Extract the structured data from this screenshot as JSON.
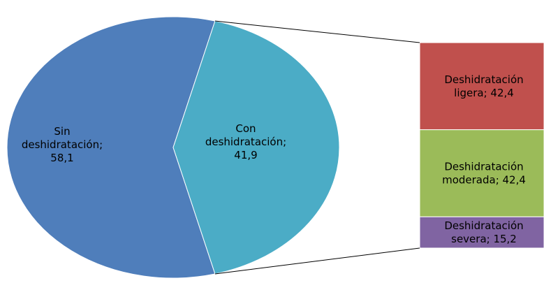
{
  "chart_data": {
    "type": "bar-of-pie",
    "pie": {
      "slices": [
        {
          "label_lines": [
            "Sin",
            "deshidratación;",
            "58,1"
          ],
          "value": 58.1,
          "color": "#4f7ebb"
        },
        {
          "label_lines": [
            "Con",
            "deshidratación;",
            "41,9"
          ],
          "value": 41.9,
          "color": "#4bacc6"
        }
      ]
    },
    "bar": {
      "segments": [
        {
          "label_lines": [
            "Deshidratación",
            "ligera; 42,4"
          ],
          "value": 42.4,
          "color": "#c0504d"
        },
        {
          "label_lines": [
            "Deshidratación",
            "moderada; 42,4"
          ],
          "value": 42.4,
          "color": "#9bbb59"
        },
        {
          "label_lines": [
            "Deshidratación",
            "severa; 15,2"
          ],
          "value": 15.2,
          "color": "#8064a2"
        }
      ]
    }
  }
}
